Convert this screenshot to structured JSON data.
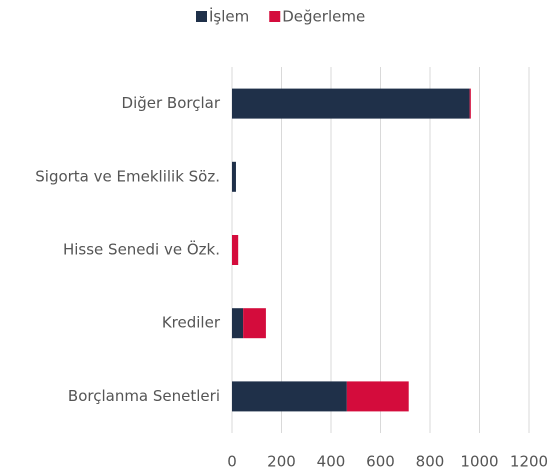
{
  "chart_data": {
    "type": "stacked-barh",
    "categories": [
      "Diğer Borçlar",
      "Sigorta ve Emeklilik Söz.",
      "Hisse Senedi ve Özk.",
      "Krediler",
      "Borçlanma Senetleri"
    ],
    "series": [
      {
        "name": "İşlem",
        "color": "#1f3049",
        "values": [
          960,
          16,
          0,
          45,
          464
        ]
      },
      {
        "name": "Değerleme",
        "color": "#d40c3c",
        "values": [
          5,
          0,
          25,
          92,
          250
        ]
      }
    ],
    "xlim": [
      0,
      1200
    ],
    "xticks": [
      0,
      200,
      400,
      600,
      800,
      1000,
      1200
    ],
    "grid": true,
    "legend": "top"
  }
}
